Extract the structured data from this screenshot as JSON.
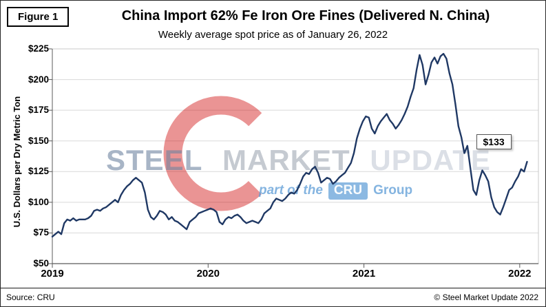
{
  "figure_label": "Figure 1",
  "title": "China Import 62% Fe Iron Ore Fines (Delivered N. China)",
  "subtitle": "Weekly average spot price as of January 26, 2022",
  "source": "Source: CRU",
  "copyright": "© Steel Market Update 2022",
  "annotation_label": "$133",
  "watermark": {
    "word1": "STEEL",
    "word2": "MARKET",
    "word3": "UPDATE",
    "tagline_prefix": "part of the",
    "tagline_box": "CRU",
    "tagline_suffix": "Group"
  },
  "colors": {
    "line": "#1f3864",
    "grid": "#d9d9d9",
    "frame": "#c9c9c9",
    "axis": "#595959",
    "watermark_red": "#cc0000",
    "watermark_blue": "#5b9bd5"
  },
  "chart_data": {
    "type": "line",
    "title": "China Import 62% Fe Iron Ore Fines (Delivered N. China)",
    "subtitle": "Weekly average spot price as of January 26, 2022",
    "xlabel": "",
    "ylabel": "U.S. Dollars per Dry Metric Ton",
    "ylim": [
      50,
      225
    ],
    "y_ticks": [
      50,
      75,
      100,
      125,
      150,
      175,
      200,
      225
    ],
    "y_tick_labels": [
      "$50",
      "$75",
      "$100",
      "$125",
      "$150",
      "$175",
      "$200",
      "$225"
    ],
    "x_ticks": [
      2019,
      2020,
      2021,
      2022
    ],
    "x_tick_labels": [
      "2019",
      "2020",
      "2021",
      "2022"
    ],
    "x_domain": [
      2019,
      2022.12
    ],
    "frequency": "weekly",
    "x_start_year": 2019,
    "weeks_per_year": 52.18,
    "grid": "horizontal",
    "legend": "none",
    "last_point_value": 133,
    "last_point_label": "$133",
    "series": [
      {
        "name": "China Import 62% Fe Iron Ore Fines (Delivered N. China), USD per dry metric ton",
        "values": [
          72,
          74,
          76,
          74,
          83,
          86,
          85,
          87,
          85,
          86,
          86,
          86,
          87,
          89,
          93,
          94,
          93,
          95,
          96,
          98,
          100,
          102,
          100,
          106,
          110,
          113,
          115,
          118,
          120,
          118,
          116,
          108,
          94,
          88,
          86,
          89,
          93,
          92,
          90,
          86,
          88,
          85,
          84,
          82,
          80,
          78,
          84,
          86,
          88,
          91,
          92,
          93,
          94,
          95,
          94,
          92,
          84,
          82,
          86,
          88,
          87,
          89,
          90,
          88,
          85,
          83,
          84,
          85,
          84,
          83,
          86,
          91,
          93,
          95,
          100,
          103,
          102,
          101,
          103,
          106,
          108,
          107,
          110,
          115,
          121,
          124,
          123,
          127,
          129,
          124,
          116,
          118,
          120,
          119,
          115,
          117,
          120,
          122,
          124,
          128,
          132,
          140,
          152,
          160,
          166,
          170,
          169,
          160,
          156,
          162,
          166,
          169,
          172,
          167,
          164,
          160,
          163,
          167,
          172,
          178,
          186,
          193,
          208,
          220,
          212,
          196,
          204,
          214,
          218,
          213,
          219,
          221,
          217,
          205,
          196,
          180,
          162,
          153,
          140,
          146,
          128,
          110,
          106,
          118,
          126,
          122,
          117,
          104,
          96,
          92,
          90,
          96,
          103,
          110,
          112,
          117,
          121,
          127,
          125,
          133
        ]
      }
    ]
  }
}
